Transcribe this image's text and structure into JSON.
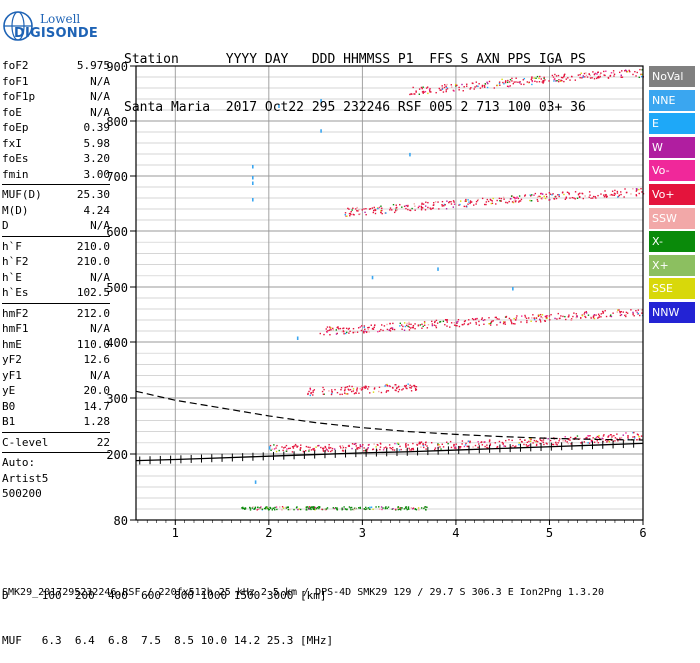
{
  "logo": {
    "line1": "Lowell",
    "line2": "DIGISONDE"
  },
  "header": {
    "line1": "Station      YYYY DAY   DDD HHMMSS P1  FFS S AXN PPS IGA PS",
    "line2": "Santa Maria  2017 Oct22 295 232246 RSF 005 2 713 100 03+ 36"
  },
  "params": [
    [
      {
        "k": "foF2",
        "v": "5.975"
      },
      {
        "k": "foF1",
        "v": "N/A"
      },
      {
        "k": "foF1p",
        "v": "N/A"
      },
      {
        "k": "foE",
        "v": "N/A"
      },
      {
        "k": "foEp",
        "v": "0.39"
      },
      {
        "k": "fxI",
        "v": "5.98"
      },
      {
        "k": "foEs",
        "v": "3.20"
      },
      {
        "k": "fmin",
        "v": "3.00"
      }
    ],
    [
      {
        "k": "MUF(D)",
        "v": "25.30"
      },
      {
        "k": "M(D)",
        "v": "4.24"
      },
      {
        "k": "D",
        "v": "N/A"
      }
    ],
    [
      {
        "k": "h`F",
        "v": "210.0"
      },
      {
        "k": "h`F2",
        "v": "210.0"
      },
      {
        "k": "h`E",
        "v": "N/A"
      },
      {
        "k": "h`Es",
        "v": "102.5"
      }
    ],
    [
      {
        "k": "hmF2",
        "v": "212.0"
      },
      {
        "k": "hmF1",
        "v": "N/A"
      },
      {
        "k": "hmE",
        "v": "110.0"
      },
      {
        "k": "yF2",
        "v": "12.6"
      },
      {
        "k": "yF1",
        "v": "N/A"
      },
      {
        "k": "yE",
        "v": "20.0"
      },
      {
        "k": "B0",
        "v": "14.7"
      },
      {
        "k": "B1",
        "v": "1.28"
      }
    ],
    [
      {
        "k": "C-level",
        "v": "22"
      }
    ]
  ],
  "autoscaling": [
    "Auto:",
    "Artist5",
    "500200"
  ],
  "legend": [
    {
      "label": "NoVal",
      "color": "#808080"
    },
    {
      "label": "NNE",
      "color": "#3aa6f0"
    },
    {
      "label": "E",
      "color": "#1ea8f8"
    },
    {
      "label": "W",
      "color": "#b01ea0"
    },
    {
      "label": "Vo-",
      "color": "#f0289a"
    },
    {
      "label": "Vo+",
      "color": "#e4143c"
    },
    {
      "label": "SSW",
      "color": "#f2a8a8"
    },
    {
      "label": "X-",
      "color": "#0a8a0a"
    },
    {
      "label": "X+",
      "color": "#8cbf60"
    },
    {
      "label": "SSE",
      "color": "#d8d80a"
    },
    {
      "label": "NNW",
      "color": "#2323d4"
    }
  ],
  "bottom": {
    "line1": "D     100  200  400  600  800 1000 1500 3000 [km]",
    "line2": "MUF   6.3  6.4  6.8  7.5  8.5 10.0 14.2 25.3 [MHz]"
  },
  "footer": "SMK29_2017295232246.RSF / 220fx512h 25 kHz 2.5 km / DPS-4D SMK29 129 / 29.7 S 306.3 E Ion2Png 1.3.20",
  "chart_data": {
    "type": "scatter",
    "xlim": [
      0.58,
      6.0
    ],
    "ylim": [
      80,
      900
    ],
    "x_ticks": [
      "1",
      "2",
      "3",
      "4",
      "5",
      "6"
    ],
    "y_ticks": [
      "80",
      "200",
      "300",
      "400",
      "500",
      "600",
      "700",
      "800",
      "900"
    ],
    "grid": true,
    "legend_position": "right",
    "traces": [
      {
        "name": "F2 O-trace",
        "color": "#e4143c",
        "points": [
          [
            2.0,
            211
          ],
          [
            2.5,
            212
          ],
          [
            3.0,
            213
          ],
          [
            3.5,
            215
          ],
          [
            4.0,
            217
          ],
          [
            4.5,
            220
          ],
          [
            5.0,
            224
          ],
          [
            5.5,
            228
          ],
          [
            6.0,
            234
          ]
        ]
      },
      {
        "name": "2nd hop",
        "color": "#e4143c",
        "points": [
          [
            2.5,
            420
          ],
          [
            3.0,
            425
          ],
          [
            3.5,
            430
          ],
          [
            4.0,
            436
          ],
          [
            4.5,
            440
          ],
          [
            5.0,
            446
          ],
          [
            5.5,
            450
          ],
          [
            6.0,
            455
          ]
        ]
      },
      {
        "name": "3rd hop",
        "color": "#e4143c",
        "points": [
          [
            2.8,
            635
          ],
          [
            3.2,
            640
          ],
          [
            3.5,
            645
          ],
          [
            4.0,
            650
          ],
          [
            4.5,
            658
          ],
          [
            5.0,
            664
          ],
          [
            5.5,
            668
          ],
          [
            6.0,
            672
          ]
        ]
      },
      {
        "name": "4th hop",
        "color": "#e4143c",
        "points": [
          [
            3.5,
            855
          ],
          [
            4.0,
            862
          ],
          [
            4.5,
            870
          ],
          [
            5.0,
            878
          ],
          [
            5.5,
            884
          ],
          [
            6.0,
            888
          ]
        ]
      },
      {
        "name": "Es",
        "color": "#0a8a0a",
        "points": [
          [
            1.7,
            102.5
          ],
          [
            2.2,
            102.5
          ],
          [
            2.7,
            102.5
          ],
          [
            3.2,
            102.5
          ],
          [
            3.7,
            102.5
          ]
        ]
      },
      {
        "name": "Es 2nd hop",
        "color": "#e4143c",
        "points": [
          [
            2.4,
            312
          ],
          [
            2.8,
            315
          ],
          [
            3.2,
            318
          ],
          [
            3.6,
            320
          ]
        ]
      },
      {
        "name": "profile",
        "color": "#000000",
        "points": [
          [
            0.58,
            188
          ],
          [
            1.0,
            190
          ],
          [
            1.5,
            193
          ],
          [
            2.0,
            196
          ],
          [
            2.5,
            199
          ],
          [
            3.0,
            202
          ],
          [
            3.5,
            204
          ],
          [
            4.0,
            207
          ],
          [
            4.5,
            210
          ],
          [
            5.0,
            213
          ],
          [
            5.5,
            216
          ],
          [
            6.0,
            219
          ]
        ]
      },
      {
        "name": "MUF curve",
        "color": "#000000",
        "points": [
          [
            0.58,
            312
          ],
          [
            1.0,
            296
          ],
          [
            1.5,
            282
          ],
          [
            2.0,
            268
          ],
          [
            2.5,
            256
          ],
          [
            3.0,
            247
          ],
          [
            3.5,
            240
          ],
          [
            4.0,
            235
          ],
          [
            4.5,
            231
          ],
          [
            5.0,
            228
          ],
          [
            5.5,
            226
          ],
          [
            6.0,
            225
          ]
        ]
      }
    ]
  }
}
